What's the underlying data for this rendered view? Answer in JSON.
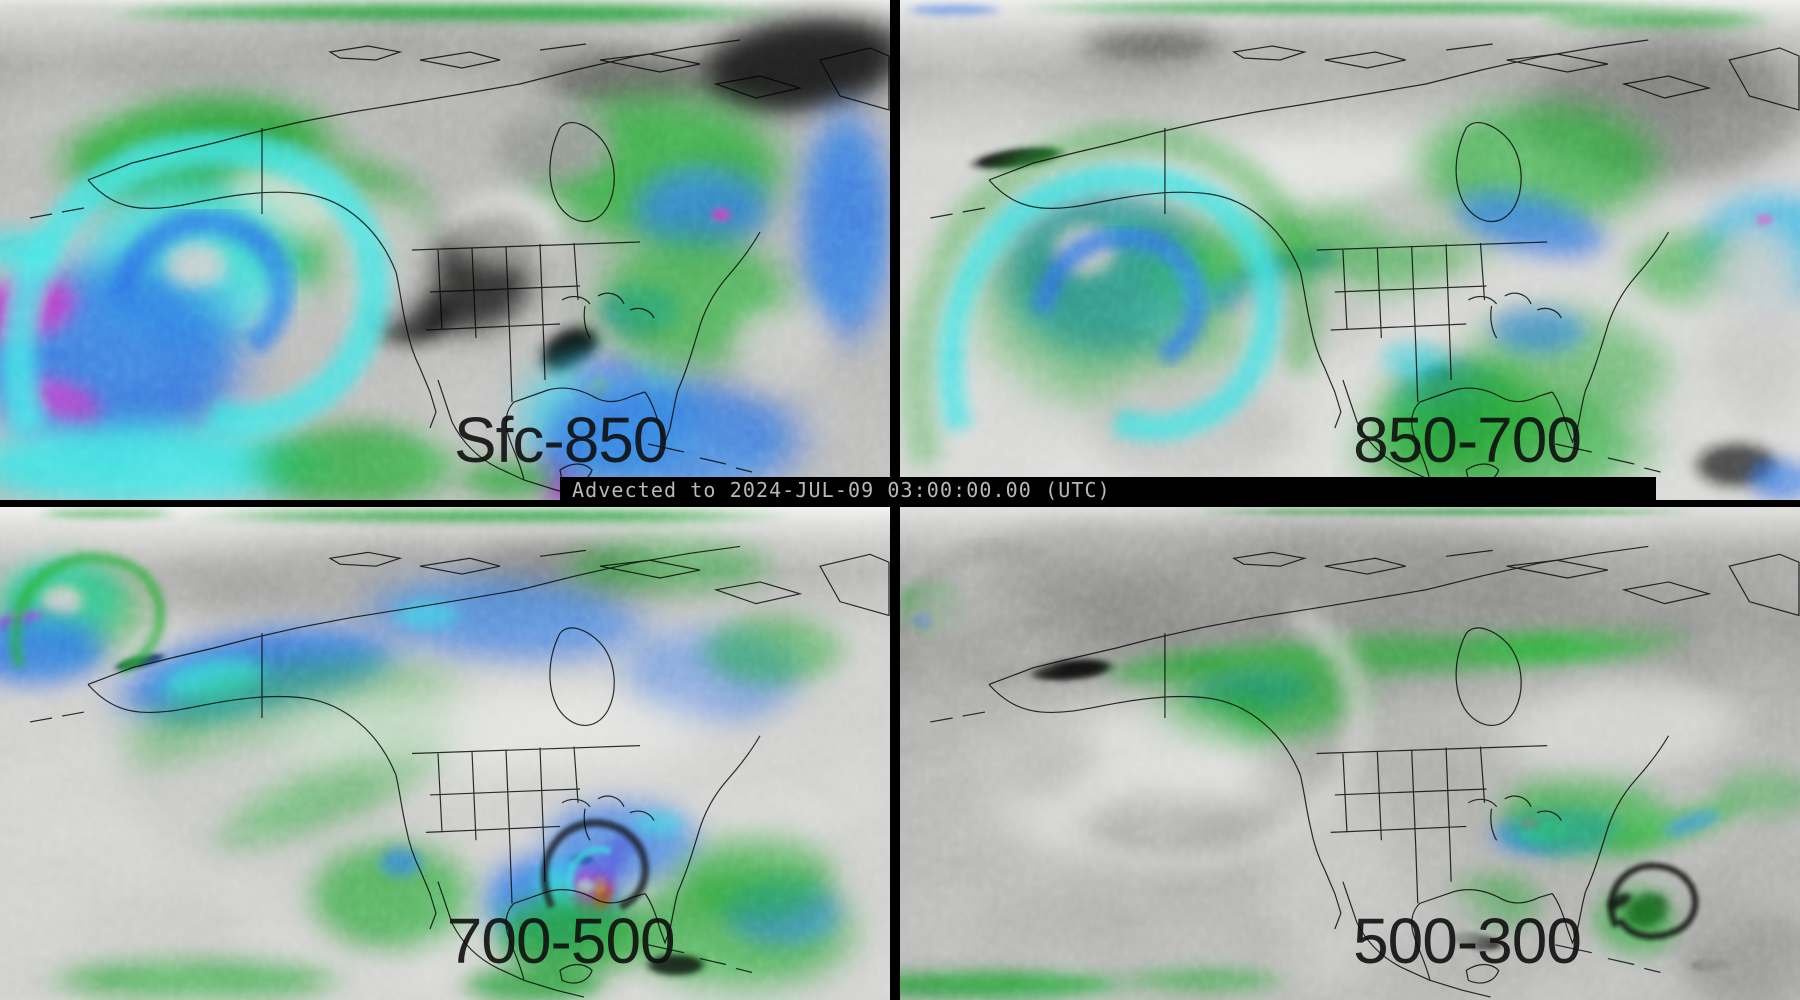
{
  "banner": {
    "text": "Advected to 2024-JUL-09 03:00:00.00 (UTC)",
    "background_color": "#000000",
    "text_color": "#b8b8b8"
  },
  "panels": [
    {
      "id": "sfc-850",
      "label": "Sfc-850",
      "position": "top-left"
    },
    {
      "id": "850-700",
      "label": "850-700",
      "position": "top-right"
    },
    {
      "id": "700-500",
      "label": "700-500",
      "position": "bottom-left"
    },
    {
      "id": "500-300",
      "label": "500-300",
      "position": "bottom-right"
    }
  ],
  "label_color": "#111111",
  "divider_color": "#000000",
  "palette": {
    "dry_gray": "#9a9a98",
    "very_dry_black": "#000000",
    "moist_white": "#f0f0ee",
    "green": "#1f9e2c",
    "blue": "#2b6be2",
    "cyan": "#3ae2e2",
    "magenta": "#c22ec2",
    "purple": "#9b2bbf",
    "orange": "#f07c14",
    "red": "#d8340c",
    "map_outline": "#000000"
  }
}
